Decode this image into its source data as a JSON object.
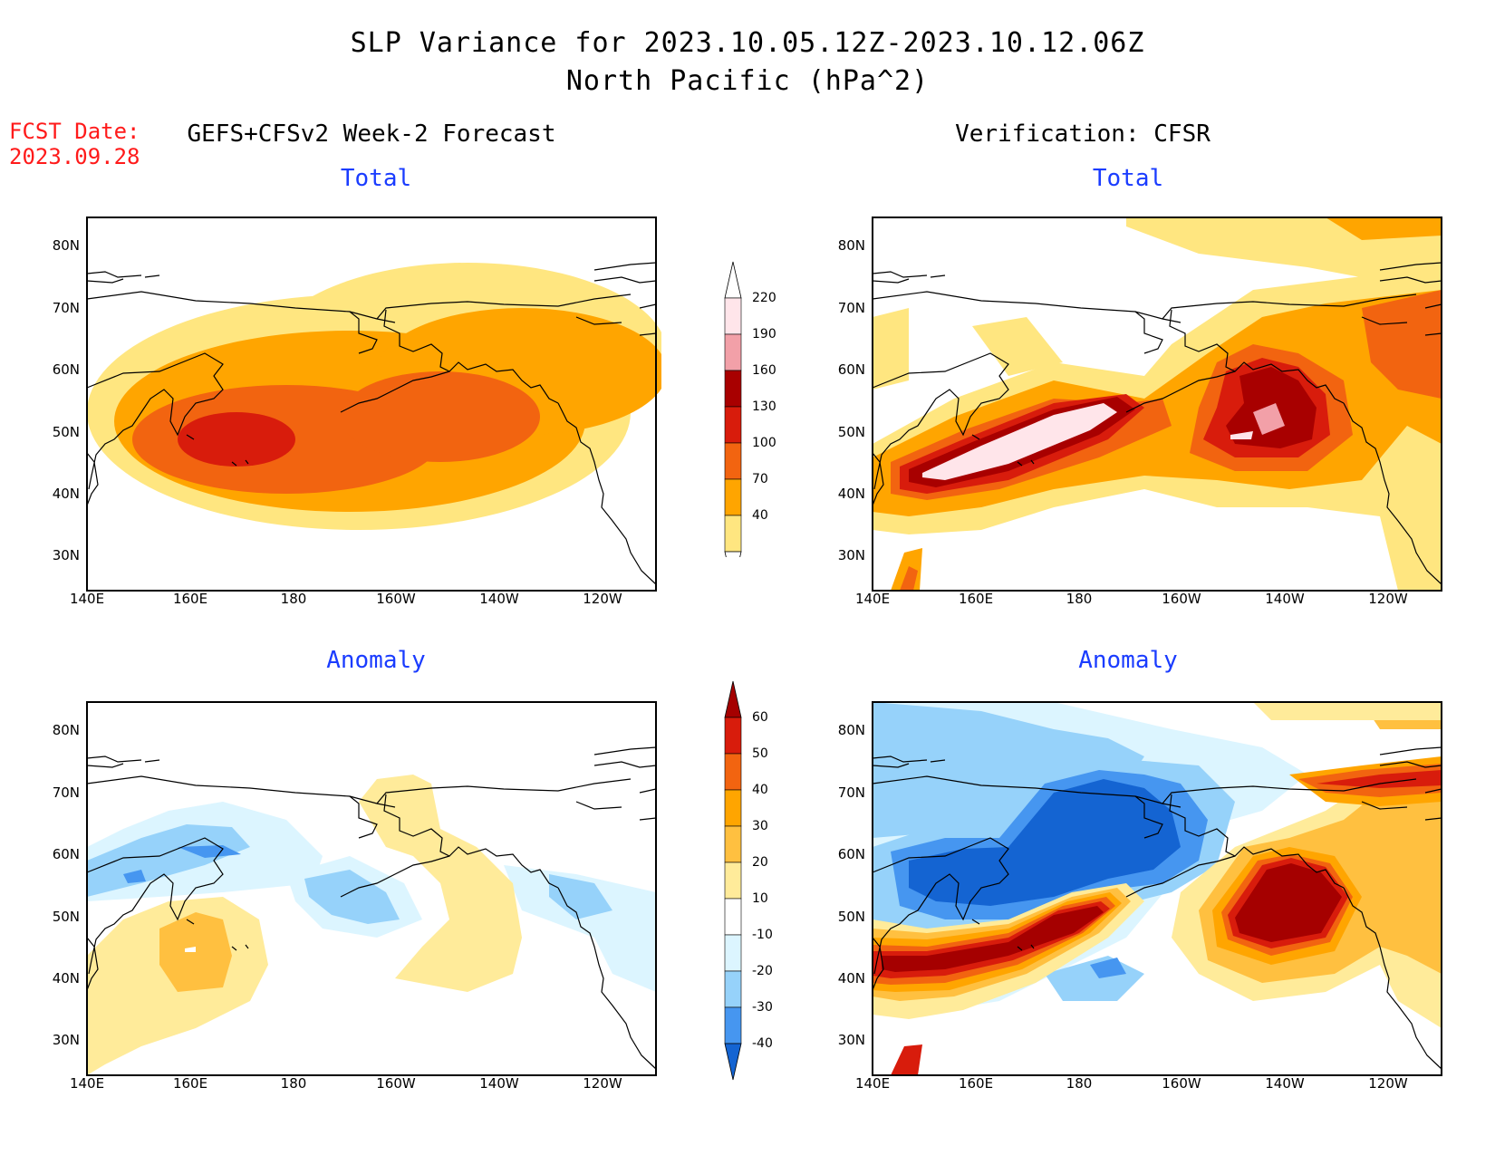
{
  "title": {
    "line1": "SLP Variance for 2023.10.05.12Z-2023.10.12.06Z",
    "line2": "North Pacific (hPa^2)"
  },
  "fcst_date": {
    "label": "FCST Date:",
    "value": "2023.09.28"
  },
  "columns": {
    "left": "GEFS+CFSv2 Week-2 Forecast",
    "right": "Verification: CFSR"
  },
  "panels": {
    "top_left": "Total",
    "top_right": "Total",
    "bottom_left": "Anomaly",
    "bottom_right": "Anomaly"
  },
  "axes": {
    "lat_labels": [
      "80N",
      "70N",
      "60N",
      "50N",
      "40N",
      "30N"
    ],
    "lon_labels": [
      "140E",
      "160E",
      "180",
      "160W",
      "140W",
      "120W"
    ]
  },
  "colorbars": {
    "total": {
      "levels": [
        "220",
        "190",
        "160",
        "130",
        "100",
        "70",
        "40"
      ],
      "colors": [
        "#ffe5ea",
        "#f2a0a8",
        "#a80000",
        "#d81c0c",
        "#f26410",
        "#ffa500",
        "#ffe680"
      ]
    },
    "anomaly": {
      "levels": [
        "60",
        "50",
        "40",
        "30",
        "20",
        "10",
        "-10",
        "-20",
        "-30",
        "-40"
      ],
      "colors": [
        "#a50000",
        "#d81c0c",
        "#f26410",
        "#ffa500",
        "#ffc040",
        "#ffeb9a",
        "#ffffff",
        "#dcf5ff",
        "#96d2fa",
        "#4696f0",
        "#1464d2"
      ]
    }
  },
  "map_colors": {
    "land_outline": "#000000",
    "frame": "#000000"
  }
}
